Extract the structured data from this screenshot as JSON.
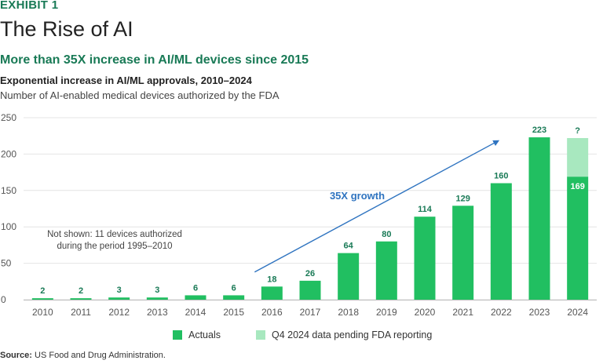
{
  "header": {
    "exhibit": "EXHIBIT 1",
    "title": "The Rise of AI",
    "subtitle": "More than 35X increase in AI/ML devices since 2015",
    "chart_title": "Exponential increase in AI/ML approvals, 2010–2024",
    "chart_subtitle": "Number of AI-enabled medical devices authorized by the FDA"
  },
  "source": {
    "label": "Source:",
    "text": "US Food and Drug Administration."
  },
  "colors": {
    "actual": "#21bf61",
    "pending": "#a8e8bf",
    "accent_green": "#197a56",
    "arrow": "#2f74c0",
    "axis_text": "#555555"
  },
  "chart_data": {
    "type": "bar",
    "categories": [
      "2010",
      "2011",
      "2012",
      "2013",
      "2014",
      "2015",
      "2016",
      "2017",
      "2018",
      "2019",
      "2020",
      "2021",
      "2022",
      "2023",
      "2024"
    ],
    "series": [
      {
        "name": "Actuals",
        "values": [
          2,
          2,
          3,
          3,
          6,
          6,
          18,
          26,
          64,
          80,
          114,
          129,
          160,
          223,
          169
        ]
      },
      {
        "name": "Q4 2024 data pending FDA reporting",
        "values": [
          0,
          0,
          0,
          0,
          0,
          0,
          0,
          0,
          0,
          0,
          0,
          0,
          0,
          0,
          53
        ]
      }
    ],
    "data_labels": [
      "2",
      "2",
      "3",
      "3",
      "6",
      "6",
      "18",
      "26",
      "64",
      "80",
      "114",
      "129",
      "160",
      "223",
      "169"
    ],
    "pending_label": "?",
    "ylim": [
      0,
      250
    ],
    "yticks": [
      0,
      50,
      100,
      150,
      200,
      250
    ],
    "annotation_note": [
      "Not shown: 11 devices authorized",
      "during the period 1995–2010"
    ],
    "growth_label": "35X growth",
    "growth_arrow": {
      "from_x": "2016",
      "from_y": 38,
      "to_x": "2022",
      "to_y": 218
    },
    "legend": [
      "Actuals",
      "Q4 2024 data pending FDA reporting"
    ],
    "legend_position": "bottom-center",
    "xlabel": "",
    "ylabel": ""
  }
}
